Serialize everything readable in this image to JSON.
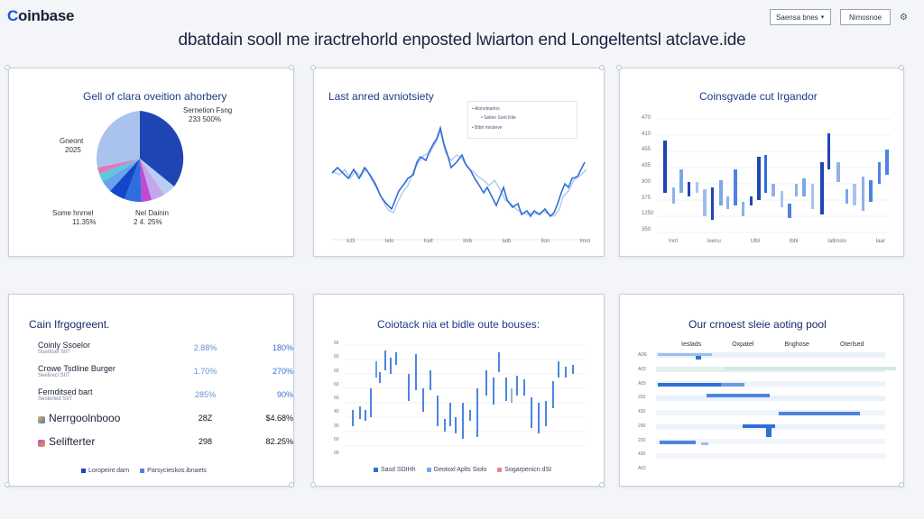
{
  "header": {
    "logo": {
      "accent": "C",
      "rest": "oinbase"
    },
    "select_label": "Saensa bnes",
    "button_label": "Nimosnoe",
    "headline": "dbatdain sooll me iractrehorld enposted lwiarton end Longeltentsl atclave.ide"
  },
  "pie_panel": {
    "title": "Gell of clara oveition ahorbery",
    "labels": [
      {
        "name": "Sernetion Fsng",
        "value": "233 500%"
      },
      {
        "name": "Gneont",
        "value": "2025"
      },
      {
        "name": "Some hnrnel",
        "value": "11.35%"
      },
      {
        "name": "Nel Dainin",
        "value": "2 4. 25%"
      }
    ]
  },
  "line_panel": {
    "title": "Last anred avniotsiety",
    "legend": [
      "Alonolnarino",
      "Sellen Soot Ktle",
      "Bibrt mirsleve"
    ],
    "x_labels": [
      "Icl3",
      "Ielo",
      "Iralt",
      "Imb",
      "Ialb",
      "Ilon",
      "Imol"
    ]
  },
  "candle_panel": {
    "title": "Coinsgvade cut Irgandor",
    "y_labels": [
      "470",
      "410",
      "455",
      "435",
      "300",
      "375",
      "1250",
      "350"
    ],
    "x_labels": [
      "Innt",
      "Ieenu",
      "Ulbl",
      "Ibbl",
      "Iatlmslo",
      "Iaar"
    ]
  },
  "table_panel": {
    "title": "Cain Ifrgogreent.",
    "rows": [
      {
        "name": "Coinly Ssoelor",
        "sub": "Sueritsel SIIT",
        "v1": "2.88%",
        "v2": "180%"
      },
      {
        "name": "Crowe Tsdline Burger",
        "sub": "Seelirecl SIIT",
        "v1": "1.70%",
        "v2": "270%"
      },
      {
        "name": "Fernditsed bart",
        "sub": "Senlerted SIIT",
        "v1": "285%",
        "v2": "90%"
      },
      {
        "name": "Nerrgoolnbooo",
        "sub": "",
        "v1": "28Z",
        "v2": "$4.68%"
      },
      {
        "name": "Selifterter",
        "sub": "",
        "v1": "298",
        "v2": "82.25%"
      }
    ],
    "legend": [
      "Loropeint darn",
      "Parsycieskos.ibnaets"
    ]
  },
  "bar_panel": {
    "title": "Coiotack nia et bidle oute bouses:",
    "y_labels": [
      "6ll",
      "60",
      "60",
      "60",
      "60",
      "40",
      "30",
      "60",
      "00"
    ],
    "legend": [
      "Sasd SDIHh",
      "Geotoxl Aplts Siolo",
      "Sogarpenicn dSI"
    ]
  },
  "grid_panel": {
    "title": "Our crnoest sleie aoting pool",
    "columns": [
      "Ieslads",
      "Oxpatel",
      "Bnghose",
      "Oterlsed"
    ],
    "row_labels": [
      "ADE",
      "A02",
      "A55",
      "220",
      "430",
      "290",
      "230",
      "430",
      "A02"
    ]
  },
  "colors": {
    "accent": "#1652f0",
    "dark_blue": "#1f45b5",
    "light_blue": "#9fc2f0"
  }
}
